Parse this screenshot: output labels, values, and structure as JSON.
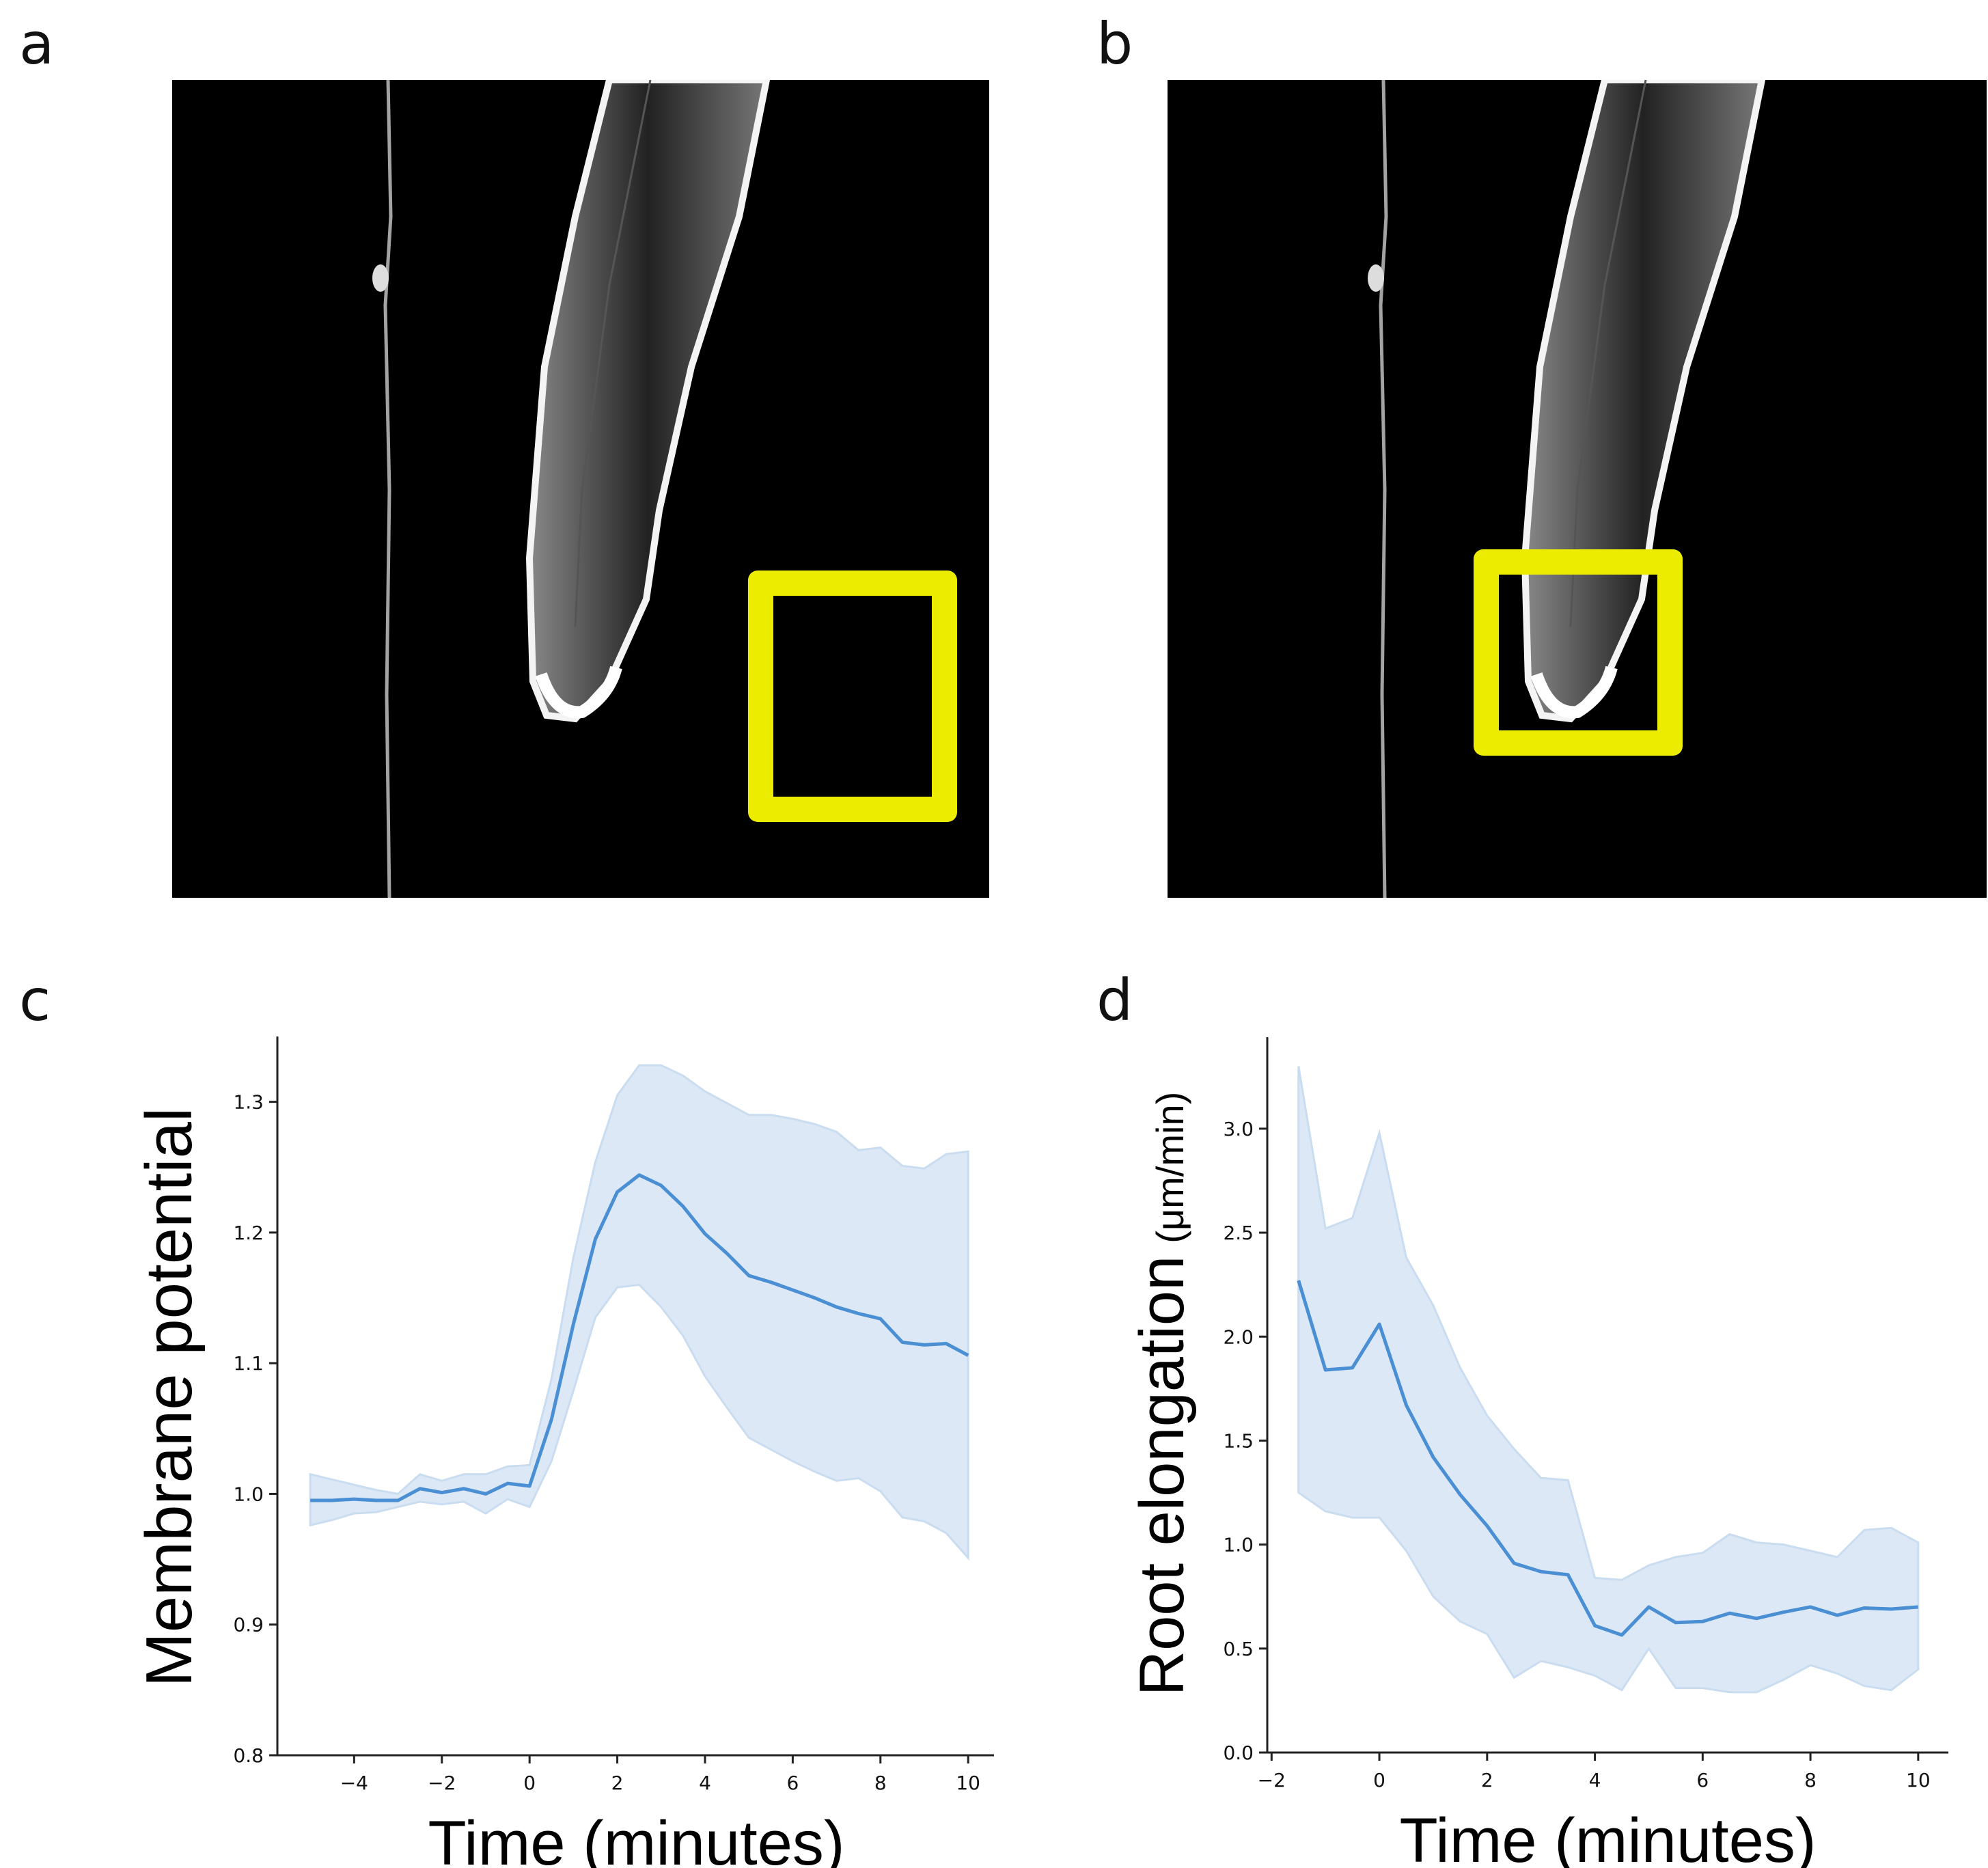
{
  "panels": {
    "a": {
      "label": "a"
    },
    "b": {
      "label": "b"
    },
    "c": {
      "label": "c"
    },
    "d": {
      "label": "d"
    }
  },
  "colors": {
    "highlight_box": "#ecec00",
    "line": "#4a8fd4",
    "band": "#dce8f5"
  },
  "chart_data": [
    {
      "type": "line",
      "panel": "c",
      "xlabel": "Time (minutes)",
      "ylabel": "Membrane potential",
      "xlim": [
        -5.75,
        10.62
      ],
      "ylim": [
        0.8,
        1.35
      ],
      "xticks": [
        -4,
        -2,
        0,
        2,
        4,
        6,
        8,
        10
      ],
      "xtick_labels": [
        "−4",
        "−2",
        "0",
        "2",
        "4",
        "6",
        "8",
        "10"
      ],
      "yticks": [
        0.8,
        0.9,
        1.0,
        1.1,
        1.2,
        1.3
      ],
      "ytick_labels": [
        "0.8",
        "0.9",
        "1.0",
        "1.1",
        "1.2",
        "1.3"
      ],
      "x": [
        -5,
        -4.5,
        -4,
        -3.5,
        -3,
        -2.5,
        -2,
        -1.5,
        -1,
        -0.5,
        0,
        0.5,
        1,
        1.5,
        2,
        2.5,
        3,
        3.5,
        4,
        4.5,
        5,
        5.5,
        6,
        6.5,
        7,
        7.5,
        8,
        8.5,
        9,
        9.5,
        10
      ],
      "mean": [
        0.995,
        0.995,
        0.996,
        0.995,
        0.995,
        1.004,
        1.001,
        1.004,
        1.0,
        1.008,
        1.006,
        1.057,
        1.13,
        1.195,
        1.231,
        1.244,
        1.236,
        1.22,
        1.199,
        1.184,
        1.167,
        1.162,
        1.156,
        1.15,
        1.143,
        1.138,
        1.134,
        1.116,
        1.114,
        1.115,
        1.106
      ],
      "upper": [
        1.015,
        1.011,
        1.007,
        1.003,
        1.0,
        1.015,
        1.01,
        1.015,
        1.015,
        1.021,
        1.022,
        1.088,
        1.181,
        1.254,
        1.305,
        1.328,
        1.328,
        1.32,
        1.308,
        1.299,
        1.29,
        1.29,
        1.287,
        1.283,
        1.277,
        1.263,
        1.265,
        1.251,
        1.249,
        1.26,
        1.262
      ],
      "lower": [
        0.976,
        0.98,
        0.985,
        0.986,
        0.99,
        0.994,
        0.992,
        0.994,
        0.985,
        0.996,
        0.99,
        1.025,
        1.079,
        1.135,
        1.158,
        1.16,
        1.143,
        1.121,
        1.09,
        1.066,
        1.043,
        1.034,
        1.025,
        1.017,
        1.01,
        1.012,
        1.002,
        0.982,
        0.979,
        0.97,
        0.951
      ]
    },
    {
      "type": "line",
      "panel": "d",
      "xlabel": "Time (minutes)",
      "ylabel": "Root elongation",
      "ylabel_unit": "(μm/min)",
      "xlim": [
        -2.08,
        10.56
      ],
      "ylim": [
        0.0,
        3.44
      ],
      "xticks": [
        -2,
        0,
        2,
        4,
        6,
        8,
        10
      ],
      "xtick_labels": [
        "−2",
        "0",
        "2",
        "4",
        "6",
        "8",
        "10"
      ],
      "yticks": [
        0.0,
        0.5,
        1.0,
        1.5,
        2.0,
        2.5,
        3.0
      ],
      "ytick_labels": [
        "0.0",
        "0.5",
        "1.0",
        "1.5",
        "2.0",
        "2.5",
        "3.0"
      ],
      "x": [
        -1.5,
        -1,
        -0.5,
        0,
        0.5,
        1,
        1.5,
        2,
        2.5,
        3,
        3.5,
        4,
        4.5,
        5,
        5.5,
        6,
        6.5,
        7,
        7.5,
        8,
        8.5,
        9,
        9.5,
        10
      ],
      "mean": [
        2.27,
        1.84,
        1.85,
        2.06,
        1.67,
        1.42,
        1.24,
        1.09,
        0.91,
        0.87,
        0.855,
        0.61,
        0.565,
        0.7,
        0.625,
        0.63,
        0.67,
        0.645,
        0.675,
        0.7,
        0.66,
        0.695,
        0.69,
        0.7
      ],
      "upper": [
        3.3,
        2.52,
        2.57,
        2.98,
        2.38,
        2.15,
        1.85,
        1.62,
        1.46,
        1.32,
        1.31,
        0.84,
        0.83,
        0.9,
        0.94,
        0.96,
        1.05,
        1.01,
        1.0,
        0.97,
        0.94,
        1.07,
        1.08,
        1.01
      ],
      "lower": [
        1.25,
        1.16,
        1.13,
        1.13,
        0.97,
        0.75,
        0.63,
        0.57,
        0.36,
        0.44,
        0.41,
        0.37,
        0.3,
        0.5,
        0.31,
        0.31,
        0.29,
        0.29,
        0.35,
        0.42,
        0.38,
        0.32,
        0.3,
        0.4
      ]
    }
  ]
}
